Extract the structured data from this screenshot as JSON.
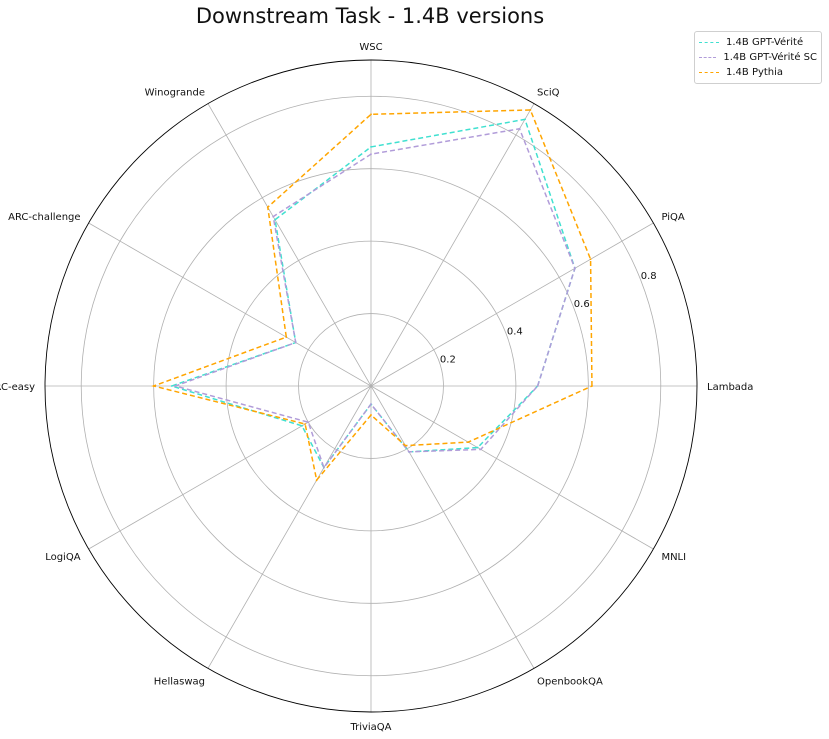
{
  "chart_data": {
    "type": "radar",
    "title": "Downstream Task - 1.4B versions",
    "categories": [
      "Lambada",
      "PiQA",
      "SciQ",
      "WSC",
      "Winogrande",
      "ARC-challenge",
      "ARC-easy",
      "LogiQA",
      "Hellaswag",
      "TriviaQA",
      "OpenbookQA",
      "MNLI"
    ],
    "rticks": [
      0.2,
      0.4,
      0.6,
      0.8
    ],
    "rlim": [
      0,
      0.9
    ],
    "grid": true,
    "legend_position": "top-right",
    "series": [
      {
        "name": "1.4B GPT-Vérité",
        "color": "#40e0d0",
        "values": [
          0.46,
          0.65,
          0.85,
          0.66,
          0.53,
          0.24,
          0.55,
          0.22,
          0.26,
          0.05,
          0.21,
          0.34
        ]
      },
      {
        "name": "1.4B GPT-Vérité SC",
        "color": "#b19cd9",
        "values": [
          0.46,
          0.65,
          0.82,
          0.64,
          0.54,
          0.24,
          0.54,
          0.2,
          0.26,
          0.05,
          0.21,
          0.35
        ]
      },
      {
        "name": "1.4B Pythia",
        "color": "#ffa500",
        "values": [
          0.61,
          0.7,
          0.88,
          0.75,
          0.57,
          0.27,
          0.6,
          0.21,
          0.3,
          0.08,
          0.19,
          0.31
        ]
      }
    ]
  }
}
